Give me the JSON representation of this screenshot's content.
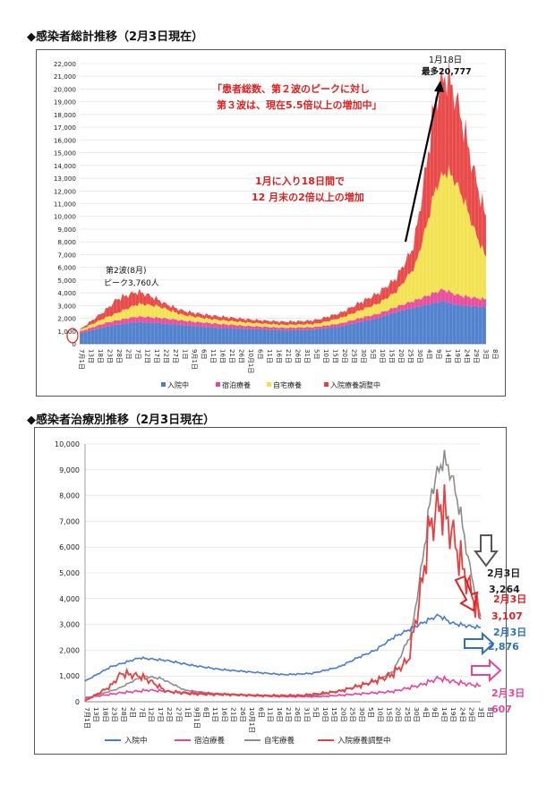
{
  "sections": {
    "top_title": "◆感染者総計推移（2月3日現在）",
    "bottom_title": "◆感染者治療別推移（2月3日現在）"
  },
  "colors": {
    "hospital": "#4a7ccc",
    "hotel": "#e8449a",
    "home": "#f2e04a",
    "adjusting": "#e84040",
    "home_line": "#8c8c8c"
  },
  "chart_data": [
    {
      "type": "area",
      "stacked": true,
      "title": "",
      "ylim": [
        0,
        22000
      ],
      "yticks": [
        0,
        1000,
        2000,
        3000,
        4000,
        5000,
        6000,
        7000,
        8000,
        9000,
        10000,
        11000,
        12000,
        13000,
        14000,
        15000,
        16000,
        17000,
        18000,
        19000,
        20000,
        21000,
        22000
      ],
      "ytick_labels": [
        "0",
        "1,000",
        "2,000",
        "3,000",
        "4,000",
        "5,000",
        "6,000",
        "7,000",
        "8,000",
        "9,000",
        "10,000",
        "11,000",
        "12,000",
        "13,000",
        "14,000",
        "15,000",
        "16,000",
        "17,000",
        "18,000",
        "19,000",
        "20,000",
        "21,000",
        "22,000"
      ],
      "xtick_labels": [
        "7月1日",
        "13日",
        "18日",
        "23日",
        "28日",
        "2日",
        "7日",
        "12日",
        "17日",
        "22日",
        "27日",
        "1日",
        "9月1日",
        "6日",
        "11日",
        "16日",
        "21日",
        "26日",
        "10月1日",
        "6日",
        "11日",
        "16日",
        "21日",
        "26日",
        "31日",
        "5日",
        "10日",
        "15日",
        "20日",
        "25日",
        "30日",
        "5日",
        "10日",
        "15日",
        "20日",
        "25日",
        "30日",
        "4日",
        "9日",
        "14日",
        "19日",
        "24日",
        "29日",
        "3日",
        "8日"
      ],
      "grid": true,
      "legend": "bottom",
      "legend_labels": [
        "入院中",
        "宿泊療養",
        "自宅療養",
        "入院療養調整中"
      ],
      "day_axis": "2020-07-01 to 2021-02-08",
      "series": [
        {
          "name": "入院中",
          "color": "#4a7ccc",
          "anchors": [
            [
              0,
              800
            ],
            [
              14,
              1350
            ],
            [
              30,
              1700
            ],
            [
              45,
              1600
            ],
            [
              60,
              1400
            ],
            [
              75,
              1250
            ],
            [
              92,
              1150
            ],
            [
              110,
              1050
            ],
            [
              125,
              1100
            ],
            [
              140,
              1350
            ],
            [
              150,
              1700
            ],
            [
              160,
              2000
            ],
            [
              170,
              2500
            ],
            [
              180,
              2850
            ],
            [
              190,
              3200
            ],
            [
              195,
              3350
            ],
            [
              202,
              3050
            ],
            [
              210,
              2950
            ],
            [
              218,
              2876
            ]
          ]
        },
        {
          "name": "宿泊療養",
          "color": "#e8449a",
          "anchors": [
            [
              0,
              150
            ],
            [
              20,
              350
            ],
            [
              35,
              450
            ],
            [
              55,
              360
            ],
            [
              75,
              300
            ],
            [
              92,
              230
            ],
            [
              110,
              200
            ],
            [
              130,
              200
            ],
            [
              150,
              300
            ],
            [
              170,
              400
            ],
            [
              185,
              650
            ],
            [
              195,
              920
            ],
            [
              205,
              750
            ],
            [
              218,
              607
            ]
          ]
        },
        {
          "name": "自宅療養",
          "color": "#f2e04a",
          "anchors": [
            [
              0,
              120
            ],
            [
              18,
              500
            ],
            [
              32,
              1000
            ],
            [
              42,
              900
            ],
            [
              55,
              450
            ],
            [
              70,
              330
            ],
            [
              92,
              260
            ],
            [
              110,
              230
            ],
            [
              128,
              250
            ],
            [
              145,
              500
            ],
            [
              160,
              800
            ],
            [
              170,
              1200
            ],
            [
              180,
              2700
            ],
            [
              186,
              5500
            ],
            [
              191,
              8200
            ],
            [
              197,
              9400
            ],
            [
              201,
              9000
            ],
            [
              206,
              7600
            ],
            [
              212,
              5200
            ],
            [
              218,
              3264
            ]
          ]
        },
        {
          "name": "入院療養調整中",
          "color": "#e84040",
          "anchors": [
            [
              0,
              30
            ],
            [
              14,
              600
            ],
            [
              20,
              1100
            ],
            [
              30,
              1000
            ],
            [
              36,
              800
            ],
            [
              45,
              400
            ],
            [
              60,
              300
            ],
            [
              80,
              270
            ],
            [
              100,
              240
            ],
            [
              120,
              250
            ],
            [
              140,
              400
            ],
            [
              155,
              700
            ],
            [
              168,
              1000
            ],
            [
              178,
              1600
            ],
            [
              184,
              3800
            ],
            [
              190,
              6800
            ],
            [
              196,
              7700
            ],
            [
              202,
              6600
            ],
            [
              208,
              5200
            ],
            [
              213,
              4200
            ],
            [
              218,
              3107
            ]
          ]
        }
      ],
      "annotations": [
        {
          "text": "1月18日",
          "color": "#111"
        },
        {
          "text": "最多20,777",
          "color": "#111"
        },
        {
          "text": "「患者総数、第２波のピークに対し",
          "color": "#e02020"
        },
        {
          "text": "第３波は、現在5.5倍以上の増加中」",
          "color": "#e02020"
        },
        {
          "text": "1月に入り18日間で",
          "color": "#e02020"
        },
        {
          "text": "12 月末の2倍以上の増加",
          "color": "#e02020"
        },
        {
          "text": "第2波(8月)",
          "color": "#111"
        },
        {
          "text": "ピーク3,760人",
          "color": "#111"
        }
      ]
    },
    {
      "type": "line",
      "title": "",
      "ylim": [
        0,
        10000
      ],
      "yticks": [
        0,
        1000,
        2000,
        3000,
        4000,
        5000,
        6000,
        7000,
        8000,
        9000,
        10000
      ],
      "ytick_labels": [
        "0",
        "1,000",
        "2,000",
        "3,000",
        "4,000",
        "5,000",
        "6,000",
        "7,000",
        "8,000",
        "9,000",
        "10,000"
      ],
      "xtick_labels": [
        "7月1日",
        "13日",
        "18日",
        "23日",
        "28日",
        "2日",
        "7日",
        "12日",
        "17日",
        "22日",
        "27日",
        "1日",
        "9月1日",
        "6日",
        "11日",
        "16日",
        "21日",
        "26日",
        "10月1日",
        "6日",
        "11日",
        "16日",
        "21日",
        "26日",
        "31日",
        "5日",
        "10日",
        "15日",
        "20日",
        "25日",
        "30日",
        "5日",
        "10日",
        "15日",
        "20日",
        "25日",
        "30日",
        "4日",
        "9日",
        "14日",
        "19日",
        "24日",
        "29日",
        "3日",
        "8日"
      ],
      "grid": true,
      "legend": "bottom",
      "series_names": [
        "入院中",
        "宿泊療養",
        "自宅療養",
        "入院療養調整中"
      ],
      "end_labels": [
        {
          "date": "2月3日",
          "value": "3,264",
          "color": "#222"
        },
        {
          "date": "2月3日",
          "value": "3,107",
          "color": "#e02020"
        },
        {
          "date": "2月3日",
          "value": "2,876",
          "color": "#2e6fc0"
        },
        {
          "date": "2月3日",
          "value": "607",
          "color": "#e8449a"
        }
      ]
    }
  ]
}
